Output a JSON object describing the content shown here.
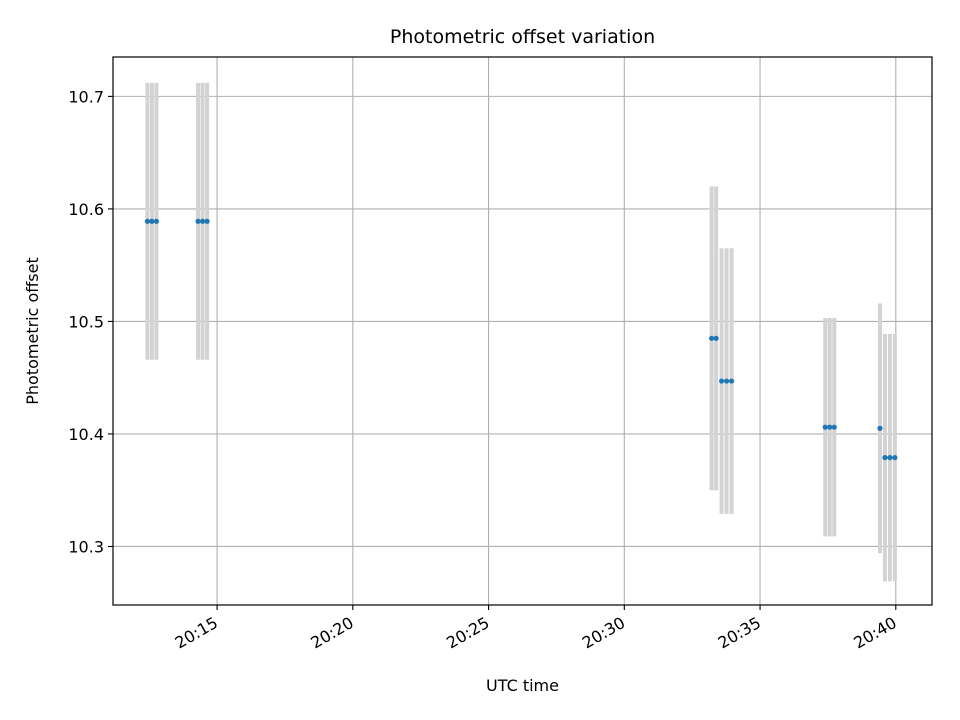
{
  "chart_data": {
    "type": "scatter",
    "title": "Photometric offset variation",
    "xlabel": "UTC time",
    "ylabel": "Photometric offset",
    "grid": true,
    "colors": {
      "points": "#1f77b4",
      "errorbars": "#d3d3d3",
      "grid": "#b0b0b0",
      "axes": "#000000"
    },
    "xlim": [
      "20:11:10",
      "20:41:20"
    ],
    "ylim": [
      10.248,
      10.735
    ],
    "xticks": [
      "20:15",
      "20:20",
      "20:25",
      "20:30",
      "20:35",
      "20:40"
    ],
    "yticks": [
      "10.3",
      "10.4",
      "10.5",
      "10.6",
      "10.7"
    ],
    "series": [
      {
        "error_type": "symmetric",
        "points": [
          {
            "x": "20:12:26",
            "y": 10.589,
            "err": 0.123
          },
          {
            "x": "20:12:36",
            "y": 10.589,
            "err": 0.123
          },
          {
            "x": "20:12:46",
            "y": 10.589,
            "err": 0.123
          },
          {
            "x": "20:14:18",
            "y": 10.589,
            "err": 0.123
          },
          {
            "x": "20:14:28",
            "y": 10.589,
            "err": 0.123
          },
          {
            "x": "20:14:38",
            "y": 10.589,
            "err": 0.123
          },
          {
            "x": "20:33:13",
            "y": 10.485,
            "err": 0.135
          },
          {
            "x": "20:33:23",
            "y": 10.485,
            "err": 0.135
          },
          {
            "x": "20:33:35",
            "y": 10.447,
            "err": 0.118
          },
          {
            "x": "20:33:46",
            "y": 10.447,
            "err": 0.118
          },
          {
            "x": "20:33:57",
            "y": 10.447,
            "err": 0.118
          },
          {
            "x": "20:37:24",
            "y": 10.406,
            "err": 0.097
          },
          {
            "x": "20:37:34",
            "y": 10.406,
            "err": 0.097
          },
          {
            "x": "20:37:44",
            "y": 10.406,
            "err": 0.097
          },
          {
            "x": "20:39:25",
            "y": 10.405,
            "err": 0.111
          },
          {
            "x": "20:39:36",
            "y": 10.379,
            "err": 0.11
          },
          {
            "x": "20:39:47",
            "y": 10.379,
            "err": 0.11
          },
          {
            "x": "20:39:58",
            "y": 10.379,
            "err": 0.11
          }
        ]
      }
    ]
  }
}
